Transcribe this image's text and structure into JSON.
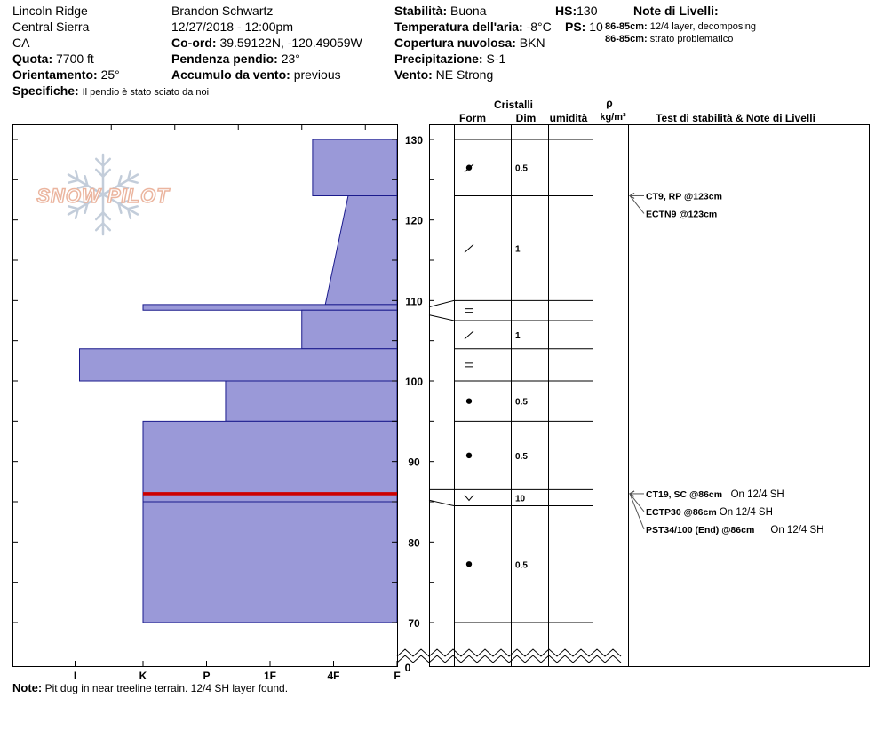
{
  "header": {
    "location": "Lincoln Ridge",
    "range": "Central Sierra",
    "state": "CA",
    "elevation_label": "Quota:",
    "elevation": "7700 ft",
    "aspect_label": "Orientamento:",
    "aspect": "25°",
    "specifics_label": "Specifiche:",
    "specifics": "Il pendio è stato sciato da noi",
    "observer": "Brandon Schwartz",
    "datetime": "12/27/2018 - 12:00pm",
    "coords_label": "Co-ord:",
    "coords": "39.59122N, -120.49059W",
    "slope_label": "Pendenza pendio:",
    "slope": "23°",
    "wind_loading_label": "Accumulo da vento:",
    "wind_loading": "previous",
    "stability_label": "Stabilità:",
    "stability": "Buona",
    "air_temp_label": "Temperatura dell'aria:",
    "air_temp": "-8°C",
    "cloud_label": "Copertura nuvolosa:",
    "cloud": "BKN",
    "precip_label": "Precipitazione:",
    "precip": "S-1",
    "wind_label": "Vento:",
    "wind": "NE Strong",
    "hs_label": "HS:",
    "hs": "130",
    "ps_label": "PS:",
    "ps": "10",
    "layer_notes_title": "Note di Livelli:",
    "layer_notes": [
      {
        "range": "86-85cm:",
        "text": "12/4 layer, decomposing"
      },
      {
        "range": "86-85cm:",
        "text": "strato problematico"
      }
    ]
  },
  "columns": {
    "crystals": "Cristalli",
    "form": "Form",
    "size": "Dim",
    "moisture": "umidità",
    "rho": "ρ",
    "density_unit": "kg/m³",
    "tests_notes": "Test di stabilità & Note di Livelli"
  },
  "note_label": "Note:",
  "note": "Pit dug in near treeline terrain. 12/4 SH layer found.",
  "watermark": "SNOW PILOT",
  "colors": {
    "hardness_fill": "#9a99d8",
    "hardness_stroke": "#1a1a8c",
    "weak_layer": "#cc0000",
    "watermark": "#e8a98f"
  },
  "chart_data": {
    "type": "snow-profile",
    "height_axis": {
      "range": [
        70,
        130
      ],
      "ticks": [
        70,
        80,
        90,
        100,
        110,
        120,
        130
      ],
      "extra_ticks": [
        0
      ]
    },
    "hardness_axis": {
      "ticks": [
        "I",
        "K",
        "P",
        "1F",
        "4F",
        "F"
      ],
      "direction": "right-to-left"
    },
    "hardness_profile": [
      {
        "top": 130,
        "bottom": 123,
        "hardness": 1.33
      },
      {
        "top": 123,
        "bottom": 109.5,
        "hardness_top": 0.77,
        "hardness_bottom": 1.13
      },
      {
        "top": 109.5,
        "bottom": 108.8,
        "hardness": 4.0
      },
      {
        "top": 108.8,
        "bottom": 104,
        "hardness": 1.5
      },
      {
        "top": 104,
        "bottom": 100,
        "hardness": 5.0
      },
      {
        "top": 100,
        "bottom": 95,
        "hardness": 2.7
      },
      {
        "top": 95,
        "bottom": 86,
        "hardness": 4.0
      },
      {
        "top": 86,
        "bottom": 85,
        "hardness": 4.0
      },
      {
        "top": 85,
        "bottom": 70,
        "hardness": 4.0
      }
    ],
    "weak_layer": {
      "top": 86.2,
      "bottom": 85.8
    },
    "layers": [
      {
        "top": 130,
        "bottom": 123,
        "form": "●/",
        "size": "0.5"
      },
      {
        "top": 123,
        "bottom": 110,
        "form": "/",
        "size": "1"
      },
      {
        "top": 110,
        "bottom": 107.5,
        "form": "=",
        "size": ""
      },
      {
        "top": 107.5,
        "bottom": 104,
        "form": "/",
        "size": "1"
      },
      {
        "top": 104,
        "bottom": 100,
        "form": "=",
        "size": ""
      },
      {
        "top": 100,
        "bottom": 95,
        "form": "●",
        "size": "0.5"
      },
      {
        "top": 95,
        "bottom": 86.5,
        "form": "●",
        "size": "0.5"
      },
      {
        "top": 86.5,
        "bottom": 84.5,
        "form": "v",
        "size": "10"
      },
      {
        "top": 84.5,
        "bottom": 70,
        "form": "●",
        "size": "0.5"
      }
    ],
    "tests": [
      {
        "height": 123,
        "label": "CT9, RP @123cm",
        "note": ""
      },
      {
        "height": 123,
        "label": "ECTN9 @123cm",
        "note": ""
      },
      {
        "height": 86,
        "label": "CT19, SC @86cm",
        "note": "On 12/4 SH"
      },
      {
        "height": 86,
        "label": "ECTP30 @86cm",
        "note": "On 12/4 SH"
      },
      {
        "height": 86,
        "label": "PST34/100 (End) @86cm",
        "note": "On 12/4 SH"
      }
    ]
  }
}
